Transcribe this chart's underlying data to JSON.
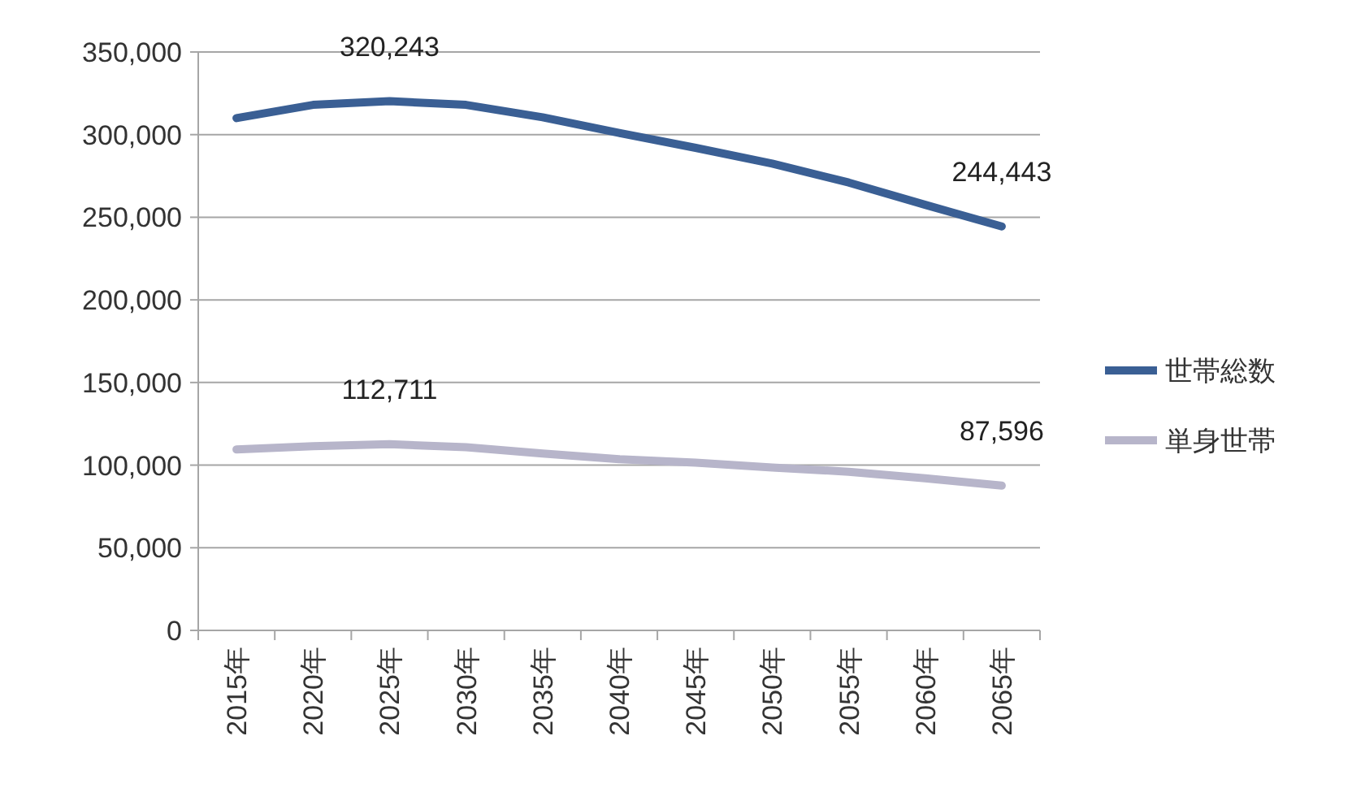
{
  "chart_data": {
    "type": "line",
    "categories": [
      "2015年",
      "2020年",
      "2025年",
      "2030年",
      "2035年",
      "2040年",
      "2045年",
      "2050年",
      "2055年",
      "2060年",
      "2065年"
    ],
    "series": [
      {
        "name": "世帯総数",
        "color": "#3a5f94",
        "values": [
          310000,
          318000,
          320243,
          318000,
          310500,
          301000,
          292000,
          282500,
          271000,
          257500,
          244443
        ],
        "value_labels": [
          null,
          null,
          "320,243",
          null,
          null,
          null,
          null,
          null,
          null,
          null,
          "244,443"
        ]
      },
      {
        "name": "単身世帯",
        "color": "#b7b5ca",
        "values": [
          109500,
          111500,
          112711,
          110800,
          107000,
          103600,
          101500,
          98600,
          96000,
          92000,
          87596
        ],
        "value_labels": [
          null,
          null,
          "112,711",
          null,
          null,
          null,
          null,
          null,
          null,
          null,
          "87,596"
        ]
      }
    ],
    "ylim": [
      0,
      350000
    ],
    "yticks": [
      {
        "value": 0,
        "label": "0"
      },
      {
        "value": 50000,
        "label": "50,000"
      },
      {
        "value": 100000,
        "label": "100,000"
      },
      {
        "value": 150000,
        "label": "150,000"
      },
      {
        "value": 200000,
        "label": "200,000"
      },
      {
        "value": 250000,
        "label": "250,000"
      },
      {
        "value": 300000,
        "label": "300,000"
      },
      {
        "value": 350000,
        "label": "350,000"
      }
    ],
    "grid": "y",
    "legend": "right",
    "marker": "none",
    "line_style": "solid"
  }
}
